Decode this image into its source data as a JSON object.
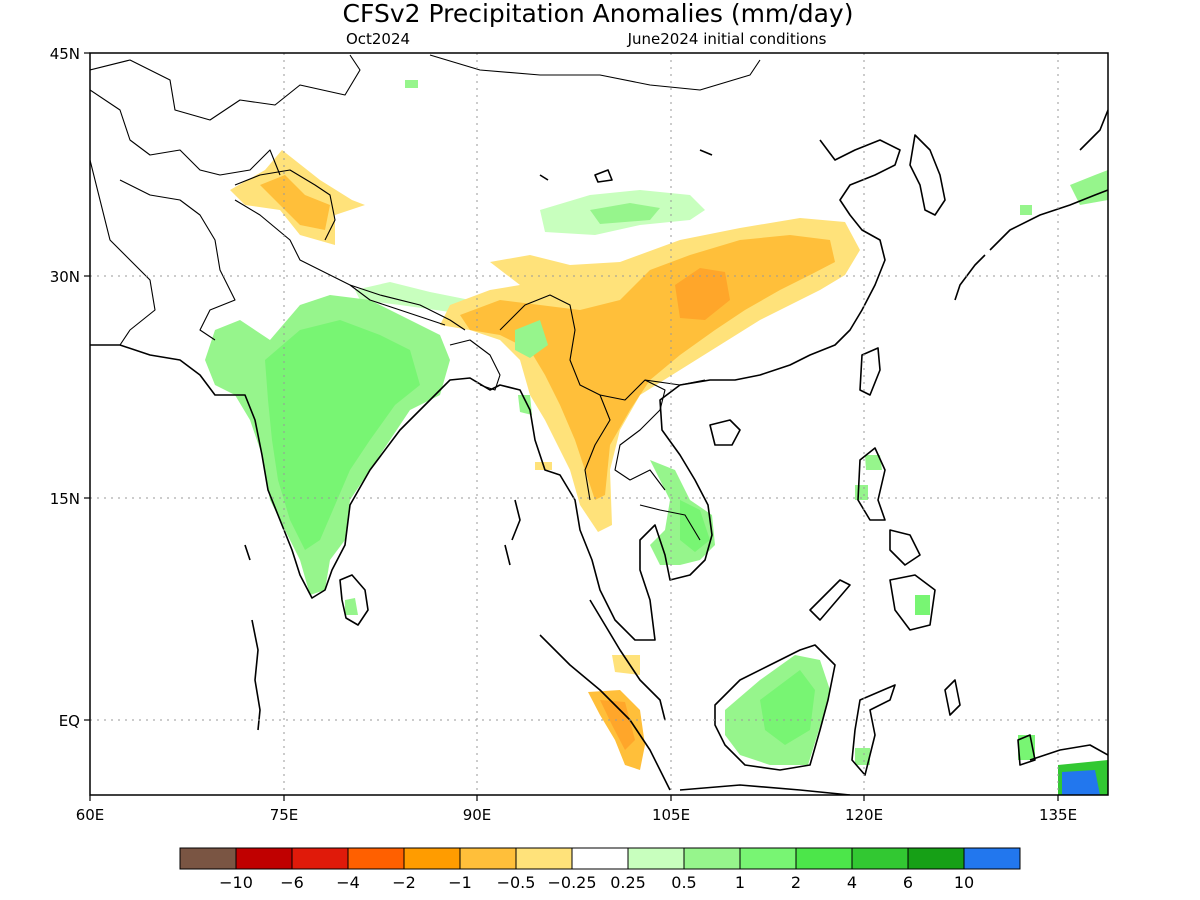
{
  "title": "CFSv2 Precipitation Anomalies (mm/day)",
  "valid_month": "Oct2024",
  "init_label": "June2024 initial conditions",
  "lat_ticks": [
    "45N",
    "30N",
    "15N",
    "EQ"
  ],
  "lon_ticks": [
    "60E",
    "75E",
    "90E",
    "105E",
    "120E",
    "135E"
  ],
  "colorbar": {
    "colors": [
      "#7a5543",
      "#c00000",
      "#e01a0a",
      "#ff6000",
      "#ff9c00",
      "#ffbf3a",
      "#ffe27a",
      "#ffffff",
      "#c8ffbe",
      "#96f58c",
      "#78f573",
      "#4ce64a",
      "#32c832",
      "#16a016",
      "#2277ee"
    ],
    "labels": [
      "−10",
      "−6",
      "−4",
      "−2",
      "−1",
      "−0.5",
      "−0.25",
      "0.25",
      "0.5",
      "1",
      "2",
      "4",
      "6",
      "10"
    ]
  },
  "anomaly_colors": {
    "orange": "#ffbf3a",
    "yellow": "#ffe27a",
    "light_green": "#c8ffbe",
    "green": "#96f58c",
    "mid_green": "#78f573",
    "blue": "#2277ee"
  }
}
